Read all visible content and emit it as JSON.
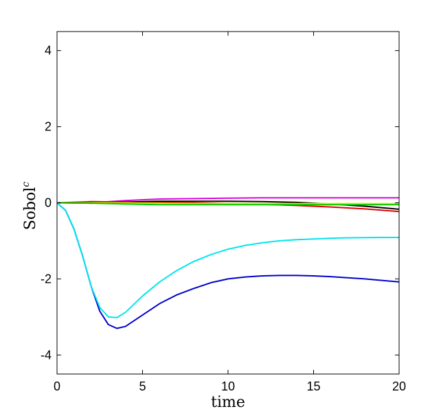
{
  "chart_data": {
    "type": "line",
    "xlabel": "time",
    "ylabel": "Sobol",
    "ylabel_superscript": "c",
    "xlim": [
      0,
      20
    ],
    "ylim": [
      -4.5,
      4.5
    ],
    "xticks": [
      0,
      5,
      10,
      15,
      20
    ],
    "yticks": [
      4,
      2,
      0,
      -2,
      -4
    ],
    "xtick_labels": [
      "0",
      "5",
      "10",
      "15",
      "20"
    ],
    "ytick_labels": [
      "4",
      "2",
      "0",
      "-2",
      "-4"
    ],
    "grid": false,
    "series": [
      {
        "color": "#0000cc",
        "x": [
          0,
          0.5,
          1,
          1.5,
          2,
          2.5,
          3,
          3.5,
          4,
          5,
          6,
          7,
          8,
          9,
          10,
          11,
          12,
          13,
          14,
          15,
          16,
          17,
          18,
          19,
          20
        ],
        "y": [
          0,
          -0.2,
          -0.7,
          -1.4,
          -2.2,
          -2.85,
          -3.2,
          -3.3,
          -3.25,
          -2.95,
          -2.65,
          -2.42,
          -2.25,
          -2.1,
          -2.0,
          -1.95,
          -1.92,
          -1.91,
          -1.91,
          -1.92,
          -1.94,
          -1.97,
          -2.0,
          -2.04,
          -2.08
        ]
      },
      {
        "color": "#00e5ee",
        "x": [
          0,
          0.5,
          1,
          1.5,
          2,
          2.5,
          3,
          3.5,
          4,
          5,
          6,
          7,
          8,
          9,
          10,
          11,
          12,
          13,
          14,
          15,
          16,
          17,
          18,
          19,
          20
        ],
        "y": [
          0,
          -0.2,
          -0.7,
          -1.4,
          -2.2,
          -2.75,
          -3.0,
          -3.02,
          -2.88,
          -2.45,
          -2.08,
          -1.78,
          -1.54,
          -1.36,
          -1.22,
          -1.12,
          -1.05,
          -1.0,
          -0.97,
          -0.95,
          -0.93,
          -0.92,
          -0.915,
          -0.91,
          -0.91
        ]
      },
      {
        "color": "#dd00dd",
        "x": [
          0,
          2,
          4,
          6,
          8,
          10,
          12,
          14,
          16,
          18,
          20
        ],
        "y": [
          0,
          0.0,
          0.06,
          0.1,
          0.11,
          0.12,
          0.13,
          0.13,
          0.13,
          0.13,
          0.13
        ]
      },
      {
        "color": "#dd0000",
        "x": [
          0,
          2,
          4,
          6,
          8,
          10,
          12,
          14,
          16,
          18,
          20
        ],
        "y": [
          0,
          0.03,
          0.02,
          0.01,
          0.0,
          -0.02,
          -0.04,
          -0.07,
          -0.11,
          -0.16,
          -0.23
        ]
      },
      {
        "color": "#000000",
        "x": [
          0,
          2,
          4,
          6,
          8,
          10,
          12,
          14,
          16,
          18,
          20
        ],
        "y": [
          0,
          -0.01,
          0.02,
          0.04,
          0.04,
          0.04,
          0.03,
          0.01,
          -0.03,
          -0.09,
          -0.17
        ]
      },
      {
        "color": "#e6e600",
        "x": [
          0,
          2,
          4,
          6,
          8,
          10,
          12,
          14,
          16,
          18,
          20
        ],
        "y": [
          0,
          0.0,
          0.0,
          -0.01,
          -0.02,
          -0.02,
          -0.02,
          -0.02,
          -0.02,
          -0.02,
          -0.02
        ]
      },
      {
        "color": "#00cc00",
        "x": [
          0,
          2,
          4,
          6,
          8,
          10,
          12,
          14,
          16,
          18,
          20
        ],
        "y": [
          0,
          -0.01,
          -0.03,
          -0.05,
          -0.05,
          -0.05,
          -0.05,
          -0.05,
          -0.05,
          -0.05,
          -0.05
        ]
      }
    ]
  }
}
